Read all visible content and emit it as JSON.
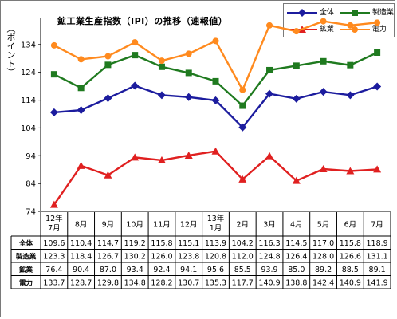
{
  "chart_data": {
    "type": "line",
    "title": "鉱工業生産指数（IPI）の推移（速報値）",
    "ylabel": "（ポイント）",
    "ylim": [
      74,
      142
    ],
    "yticks": [
      74,
      84,
      94,
      104,
      114,
      124,
      134
    ],
    "categories": [
      "12年\n7月",
      "8月",
      "9月",
      "10月",
      "11月",
      "12月",
      "13年\n1月",
      "2月",
      "3月",
      "4月",
      "5月",
      "6月",
      "7月"
    ],
    "series": [
      {
        "name": "全体",
        "color": "#1c1c9e",
        "marker": "diamond",
        "values": [
          109.6,
          110.4,
          114.7,
          119.2,
          115.8,
          115.1,
          113.9,
          104.2,
          116.3,
          114.5,
          117.0,
          115.8,
          118.9
        ]
      },
      {
        "name": "製造業",
        "color": "#1f7a1f",
        "marker": "square",
        "values": [
          123.3,
          118.4,
          126.7,
          130.2,
          126.0,
          123.8,
          120.8,
          112.0,
          124.8,
          126.4,
          128.0,
          126.6,
          131.1
        ]
      },
      {
        "name": "鉱業",
        "color": "#e02020",
        "marker": "triangle",
        "values": [
          76.4,
          90.4,
          87.0,
          93.4,
          92.4,
          94.1,
          95.6,
          85.5,
          93.9,
          85.0,
          89.2,
          88.5,
          89.1
        ]
      },
      {
        "name": "電力",
        "color": "#ff8a1e",
        "marker": "circle",
        "values": [
          133.7,
          128.7,
          129.8,
          134.8,
          128.2,
          130.7,
          135.3,
          117.7,
          140.9,
          138.8,
          142.4,
          140.9,
          141.9
        ]
      }
    ],
    "table_values": [
      [
        "109.6",
        "110.4",
        "114.7",
        "119.2",
        "115.8",
        "115.1",
        "113.9",
        "104.2",
        "116.3",
        "114.5",
        "117.0",
        "115.8",
        "118.9"
      ],
      [
        "123.3",
        "118.4",
        "126.7",
        "130.2",
        "126.0",
        "123.8",
        "120.8",
        "112.0",
        "124.8",
        "126.4",
        "128.0",
        "126.6",
        "131.1"
      ],
      [
        "76.4",
        "90.4",
        "87.0",
        "93.4",
        "92.4",
        "94.1",
        "95.6",
        "85.5",
        "93.9",
        "85.0",
        "89.2",
        "88.5",
        "89.1"
      ],
      [
        "133.7",
        "128.7",
        "129.8",
        "134.8",
        "128.2",
        "130.7",
        "135.3",
        "117.7",
        "140.9",
        "138.8",
        "142.4",
        "140.9",
        "141.9"
      ]
    ],
    "grid": false,
    "legend_position": "top-right"
  }
}
